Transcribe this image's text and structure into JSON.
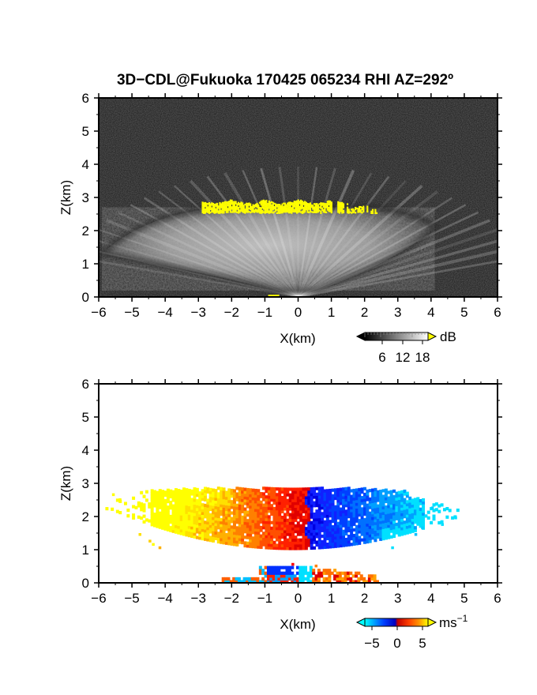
{
  "figure": {
    "title": "3D−CDL@Fukuoka 170425 065234 RHI AZ=292º"
  },
  "chart_data": [
    {
      "type": "heatmap",
      "panel": "reflectivity",
      "xlabel": "X(km)",
      "ylabel": "Z(km)",
      "xlim": [
        -6,
        6
      ],
      "ylim": [
        0,
        6
      ],
      "xticks": [
        "−6",
        "−5",
        "−4",
        "−3",
        "−2",
        "−1",
        "0",
        "1",
        "2",
        "3",
        "4",
        "5",
        "6"
      ],
      "yticks": [
        "0",
        "1",
        "2",
        "3",
        "4",
        "5",
        "6"
      ],
      "colorbar": {
        "unit": "dB",
        "ticks": [
          "6",
          "12",
          "18"
        ],
        "scale": "grayscale, black to white, yellow above max",
        "colors": {
          "low": "#000000",
          "high": "#ffffff",
          "over": "#ffff00"
        }
      },
      "cloud_echo": {
        "x_range": [
          -5.9,
          4.1
        ],
        "base_km": 0.2,
        "top_km": 2.7,
        "peak_db": 18
      },
      "saturated_band": {
        "color": "#ffff00",
        "x_range": [
          -2.9,
          2.4
        ],
        "z_range": [
          2.5,
          2.9
        ]
      }
    },
    {
      "type": "heatmap",
      "panel": "doppler_velocity",
      "xlabel": "X(km)",
      "ylabel": "Z(km)",
      "xlim": [
        -6,
        6
      ],
      "ylim": [
        0,
        6
      ],
      "xticks": [
        "−6",
        "−5",
        "−4",
        "−3",
        "−2",
        "−1",
        "0",
        "1",
        "2",
        "3",
        "4",
        "5",
        "6"
      ],
      "yticks": [
        "0",
        "1",
        "2",
        "3",
        "4",
        "5",
        "6"
      ],
      "colorbar": {
        "unit": "ms",
        "unit_exponent": "−1",
        "ticks": [
          "−5",
          "0",
          "5"
        ],
        "vmin": -6,
        "vmax": 6,
        "colors": [
          "#00ffff",
          "#0000ff",
          "#ff0000",
          "#ff8000",
          "#ffff00"
        ]
      },
      "velocity_field": [
        {
          "region": "x < 0.3 km",
          "velocity_ms": "0 to 5",
          "color": "red-orange-yellow"
        },
        {
          "region": "x > 0.3 km",
          "velocity_ms": "-5 to 0",
          "color": "blue-cyan"
        }
      ],
      "cloud_echo": {
        "x_range": [
          -5.8,
          4.8
        ],
        "base_km": 0.8,
        "top_km": 2.9
      },
      "low_echo": {
        "x_range": [
          -2.3,
          2.4
        ],
        "z_range": [
          0.0,
          0.5
        ]
      }
    }
  ]
}
